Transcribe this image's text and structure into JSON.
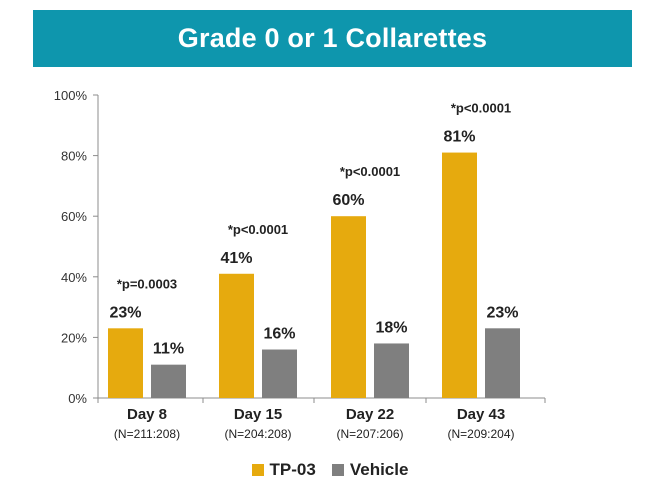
{
  "chart_data": {
    "type": "bar",
    "title": "Grade 0 or 1 Collarettes",
    "categories": [
      "Day 8",
      "Day 15",
      "Day 22",
      "Day 43"
    ],
    "subcategories": [
      "(N=211:208)",
      "(N=204:208)",
      "(N=207:206)",
      "(N=209:204)"
    ],
    "series": [
      {
        "name": "TP-03",
        "values": [
          23,
          41,
          60,
          81
        ],
        "labels": [
          "23%",
          "41%",
          "60%",
          "81%"
        ],
        "color": "#e6aa0e"
      },
      {
        "name": "Vehicle",
        "values": [
          11,
          16,
          18,
          23
        ],
        "labels": [
          "11%",
          "16%",
          "18%",
          "23%"
        ],
        "color": "#7f7f7f"
      }
    ],
    "annotations": [
      "*p=0.0003",
      "*p<0.0001",
      "*p<0.0001",
      "*p<0.0001"
    ],
    "ylim": [
      0,
      100
    ],
    "yticks": [
      0,
      20,
      40,
      60,
      80,
      100
    ],
    "ytick_labels": [
      "0%",
      "20%",
      "40%",
      "60%",
      "80%",
      "100%"
    ],
    "xlabel": "",
    "ylabel": "",
    "legend_position": "bottom-center"
  },
  "colors": {
    "banner": "#0e96ad",
    "tp03": "#e6aa0e",
    "vehicle": "#7f7f7f"
  }
}
